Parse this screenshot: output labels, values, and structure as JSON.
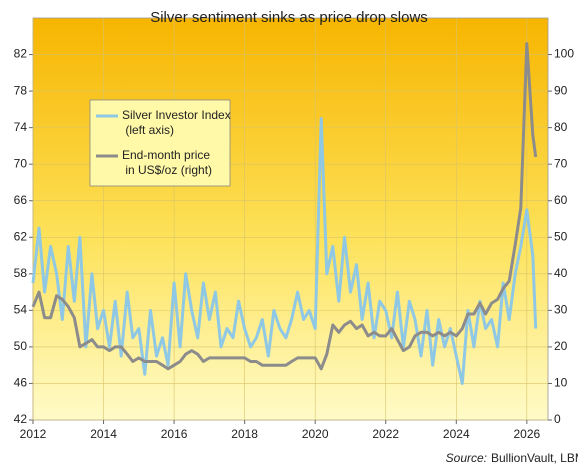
{
  "chart_data": {
    "type": "line",
    "title": "Silver sentiment sinks as price drop slows",
    "source_label": "Source:",
    "source": "BullionVault, LBMA",
    "xlim": [
      2012,
      2026.6
    ],
    "xticks": [
      2012,
      2014,
      2016,
      2018,
      2020,
      2022,
      2024,
      2026
    ],
    "ylim": [
      42,
      86
    ],
    "yticks": [
      42,
      46,
      50,
      54,
      58,
      62,
      66,
      70,
      74,
      78,
      82
    ],
    "y2lim": [
      0,
      110
    ],
    "y2ticks": [
      0,
      10,
      20,
      30,
      40,
      50,
      60,
      70,
      80,
      90,
      100
    ],
    "grid": true,
    "legend": "upper left",
    "x": [
      2012.0,
      2012.17,
      2012.33,
      2012.5,
      2012.67,
      2012.83,
      2013.0,
      2013.17,
      2013.33,
      2013.5,
      2013.67,
      2013.83,
      2014.0,
      2014.17,
      2014.33,
      2014.5,
      2014.67,
      2014.83,
      2015.0,
      2015.17,
      2015.33,
      2015.5,
      2015.67,
      2015.83,
      2016.0,
      2016.17,
      2016.33,
      2016.5,
      2016.67,
      2016.83,
      2017.0,
      2017.17,
      2017.33,
      2017.5,
      2017.67,
      2017.83,
      2018.0,
      2018.17,
      2018.33,
      2018.5,
      2018.67,
      2018.83,
      2019.0,
      2019.17,
      2019.33,
      2019.5,
      2019.67,
      2019.83,
      2020.0,
      2020.17,
      2020.33,
      2020.5,
      2020.67,
      2020.83,
      2021.0,
      2021.17,
      2021.33,
      2021.5,
      2021.67,
      2021.83,
      2022.0,
      2022.17,
      2022.33,
      2022.5,
      2022.67,
      2022.83,
      2023.0,
      2023.17,
      2023.33,
      2023.5,
      2023.67,
      2023.83,
      2024.0,
      2024.17,
      2024.33,
      2024.5,
      2024.67,
      2024.83,
      2025.0,
      2025.17,
      2025.33,
      2025.5,
      2025.67,
      2025.83,
      2026.0,
      2026.17,
      2026.25
    ],
    "series": [
      {
        "name": "Silver Investor Index (left axis)",
        "color": "#8fc8e4",
        "axis": "y",
        "values": [
          57,
          63,
          56,
          61,
          58,
          53,
          61,
          55,
          62,
          50,
          58,
          52,
          54,
          50,
          55,
          49,
          56,
          51,
          52,
          47,
          54,
          49,
          51,
          48,
          57,
          50,
          58,
          54,
          51,
          57,
          53,
          56,
          50,
          52,
          51,
          55,
          52,
          50,
          51,
          53,
          49,
          54,
          52,
          51,
          53,
          56,
          53,
          54,
          52,
          75,
          58,
          61,
          55,
          62,
          56,
          59,
          53,
          57,
          51,
          55,
          54,
          51,
          56,
          50,
          55,
          53,
          49,
          54,
          48,
          53,
          50,
          52,
          49,
          46,
          54,
          50,
          55,
          52,
          53,
          50,
          57,
          53,
          58,
          61,
          65,
          60,
          52
        ]
      },
      {
        "name": "End-month price in US$/oz (right)",
        "color": "#8c8c8c",
        "axis": "y2",
        "values": [
          31,
          35,
          28,
          28,
          34,
          33,
          31,
          28,
          20,
          21,
          22,
          20,
          20,
          19,
          20,
          20,
          18,
          16,
          17,
          16,
          16,
          16,
          15,
          14,
          15,
          16,
          18,
          19,
          18,
          16,
          17,
          17,
          17,
          17,
          17,
          17,
          17,
          16,
          16,
          15,
          15,
          15,
          15,
          15,
          16,
          17,
          17,
          17,
          17,
          14,
          18,
          26,
          24,
          26,
          27,
          25,
          26,
          23,
          24,
          23,
          23,
          25,
          22,
          19,
          20,
          23,
          24,
          24,
          23,
          24,
          23,
          24,
          23,
          25,
          29,
          29,
          32,
          29,
          32,
          33,
          36,
          38,
          48,
          58,
          103,
          78,
          72
        ]
      }
    ]
  }
}
